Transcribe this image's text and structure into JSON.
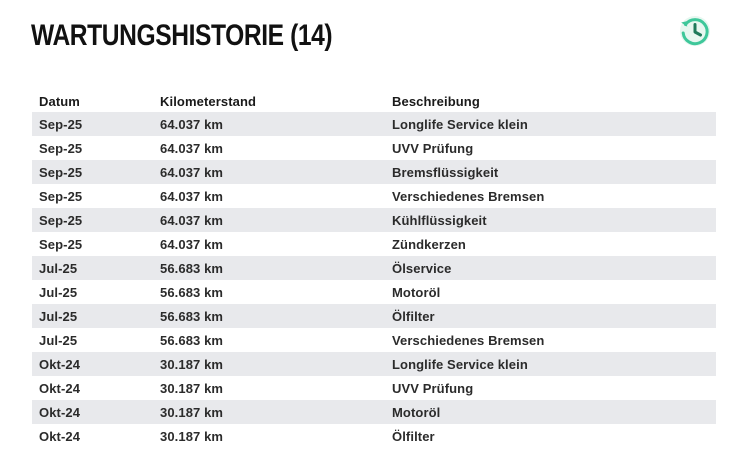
{
  "header": {
    "title": "WARTUNGSHISTORIE (14)",
    "history_icon": "history-icon",
    "accent_color": "#3ec79a"
  },
  "table": {
    "columns": [
      "Datum",
      "Kilometerstand",
      "Beschreibung"
    ],
    "rows": [
      {
        "date": "Sep-25",
        "km": "64.037 km",
        "desc": "Longlife Service klein"
      },
      {
        "date": "Sep-25",
        "km": "64.037 km",
        "desc": "UVV Prüfung"
      },
      {
        "date": "Sep-25",
        "km": "64.037 km",
        "desc": "Bremsflüssigkeit"
      },
      {
        "date": "Sep-25",
        "km": "64.037 km",
        "desc": "Verschiedenes Bremsen"
      },
      {
        "date": "Sep-25",
        "km": "64.037 km",
        "desc": "Kühlflüssigkeit"
      },
      {
        "date": "Sep-25",
        "km": "64.037 km",
        "desc": "Zündkerzen"
      },
      {
        "date": "Jul-25",
        "km": "56.683 km",
        "desc": "Ölservice"
      },
      {
        "date": "Jul-25",
        "km": "56.683 km",
        "desc": "Motoröl"
      },
      {
        "date": "Jul-25",
        "km": "56.683 km",
        "desc": "Ölfilter"
      },
      {
        "date": "Jul-25",
        "km": "56.683 km",
        "desc": "Verschiedenes Bremsen"
      },
      {
        "date": "Okt-24",
        "km": "30.187 km",
        "desc": "Longlife Service klein"
      },
      {
        "date": "Okt-24",
        "km": "30.187 km",
        "desc": "UVV Prüfung"
      },
      {
        "date": "Okt-24",
        "km": "30.187 km",
        "desc": "Motoröl"
      },
      {
        "date": "Okt-24",
        "km": "30.187 km",
        "desc": "Ölfilter"
      }
    ]
  }
}
